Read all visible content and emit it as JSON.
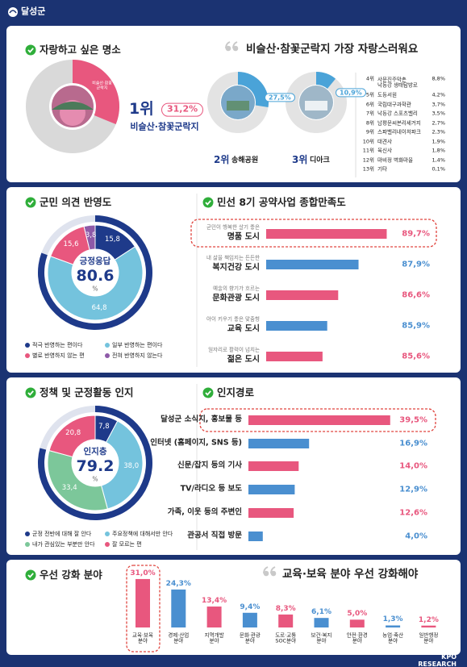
{
  "header": {
    "title": "달성군"
  },
  "footer": {
    "text": "KPO RESEARCH"
  },
  "chart_data": [
    {
      "type": "ranking",
      "title": "자랑하고 싶은 명소",
      "headline": "비슬산·참꽃군락지 가장 자랑스러워요",
      "ranks": [
        "1위",
        "2위",
        "3위",
        "4위",
        "5위",
        "6위",
        "7위",
        "8위",
        "9위",
        "10위",
        "11위",
        "12위",
        "13위"
      ],
      "categories": [
        "비슬산·참꽃군락지",
        "송해공원",
        "디아크",
        "사문진주막촌\n낙동강 생태탐방로",
        "도동서원",
        "국립대구과학관",
        "낙동강 스포츠밸리",
        "남평문씨본리세거지",
        "스파밸리네이처파크",
        "대견사",
        "육신사",
        "마비정 벽화마을",
        "기타"
      ],
      "values": [
        31.2,
        27.5,
        10.9,
        8.8,
        4.2,
        3.7,
        3.5,
        2.7,
        2.3,
        1.9,
        1.8,
        1.4,
        0.1
      ],
      "value_labels": [
        "31,2%",
        "27,5%",
        "10,9%",
        "8,8%",
        "4,2%",
        "3,7%",
        "3,5%",
        "2,7%",
        "2,3%",
        "1,9%",
        "1,8%",
        "1,4%",
        "0,1%"
      ],
      "color": "#4aa3d8",
      "highlight_color": "#e8577e"
    },
    {
      "type": "donut",
      "title": "군민 의견 반영도",
      "categories": [
        "적극 반영하는 편이다",
        "일부 반영하는 편이다",
        "별로 반영하지 않는 편",
        "전혀 반영하지 않는다"
      ],
      "values": [
        15.8,
        64.8,
        15.6,
        3.8
      ],
      "value_labels": [
        "15,8",
        "64,8",
        "15,6",
        "3,8"
      ],
      "colors": [
        "#1e3a8a",
        "#74c3dd",
        "#e8577e",
        "#8e5aa8"
      ],
      "center_label": "긍정응답",
      "center_value": 80.6,
      "center_unit": "%",
      "ring_color": "#1e3a8a"
    },
    {
      "type": "hbar",
      "title": "민선 8기 공약사업 종합만족도",
      "subtitles": [
        "군민이 행복한 살기 좋은",
        "내 삶을 책임지는 든든한",
        "예술의 향기가 흐르는",
        "아이 키우기 좋은 맞춤형",
        "일자리로 활력이 넘치는"
      ],
      "categories": [
        "명품 도시",
        "복지건강 도시",
        "문화관광 도시",
        "교육 도시",
        "젊은 도시"
      ],
      "values": [
        89.7,
        87.9,
        86.6,
        85.9,
        85.6
      ],
      "value_labels": [
        "89,7%",
        "87,9%",
        "86,6%",
        "85,9%",
        "85,6%"
      ],
      "colors": [
        "#e8577e",
        "#4a8fd0",
        "#e8577e",
        "#4a8fd0",
        "#e8577e"
      ],
      "xlim": [
        82,
        90.5
      ]
    },
    {
      "type": "donut",
      "title": "정책 및 군정활동 인지",
      "categories": [
        "군정 전반에 대해 잘 안다",
        "주요정책에 대해서만 안다",
        "내가 관심있는 부분만 안다",
        "잘 모르는 편"
      ],
      "values": [
        7.8,
        38.0,
        33.4,
        20.8
      ],
      "value_labels": [
        "7,8",
        "38,0",
        "33,4",
        "20,8"
      ],
      "colors": [
        "#1e3a8a",
        "#74c3dd",
        "#7cc79a",
        "#e8577e"
      ],
      "center_label": "인지층",
      "center_value": 79.2,
      "center_unit": "%",
      "ring_color": "#1e3a8a"
    },
    {
      "type": "hbar",
      "title": "인지경로",
      "categories": [
        "달성군 소식지, 홍보물 등",
        "인터넷 (홈페이지, SNS 등)",
        "신문/잡지 등의 기사",
        "TV/라디오 등 보도",
        "가족, 이웃 등의 주변인",
        "관공서 직접 방문"
      ],
      "values": [
        39.5,
        16.9,
        14.0,
        12.9,
        12.6,
        4.0
      ],
      "value_labels": [
        "39,5%",
        "16,9%",
        "14,0%",
        "12,9%",
        "12,6%",
        "4,0%"
      ],
      "colors": [
        "#e8577e",
        "#4a8fd0",
        "#e8577e",
        "#4a8fd0",
        "#e8577e",
        "#4a8fd0"
      ],
      "xlim": [
        0,
        40
      ]
    },
    {
      "type": "bar",
      "title": "우선 강화 분야",
      "headline": "교육·보육 분야 우선 강화해야",
      "categories": [
        "교육·보육\n분야",
        "경제·산업\n분야",
        "지역개발\n분야",
        "문화·관광\n분야",
        "도로·교통\nSOC분야",
        "보건·복지\n분야",
        "안전·환경\n분야",
        "농업·축산\n분야",
        "일반행정\n분야"
      ],
      "values": [
        31.0,
        24.3,
        13.4,
        9.4,
        8.3,
        6.1,
        5.0,
        1.3,
        1.2
      ],
      "value_labels": [
        "31,0%",
        "24,3%",
        "13,4%",
        "9,4%",
        "8,3%",
        "6,1%",
        "5,0%",
        "1,3%",
        "1,2%"
      ],
      "colors": [
        "#e8577e",
        "#4a8fd0",
        "#e8577e",
        "#4a8fd0",
        "#e8577e",
        "#4a8fd0",
        "#e8577e",
        "#4a8fd0",
        "#e8577e"
      ],
      "ylim": [
        0,
        32
      ]
    }
  ]
}
